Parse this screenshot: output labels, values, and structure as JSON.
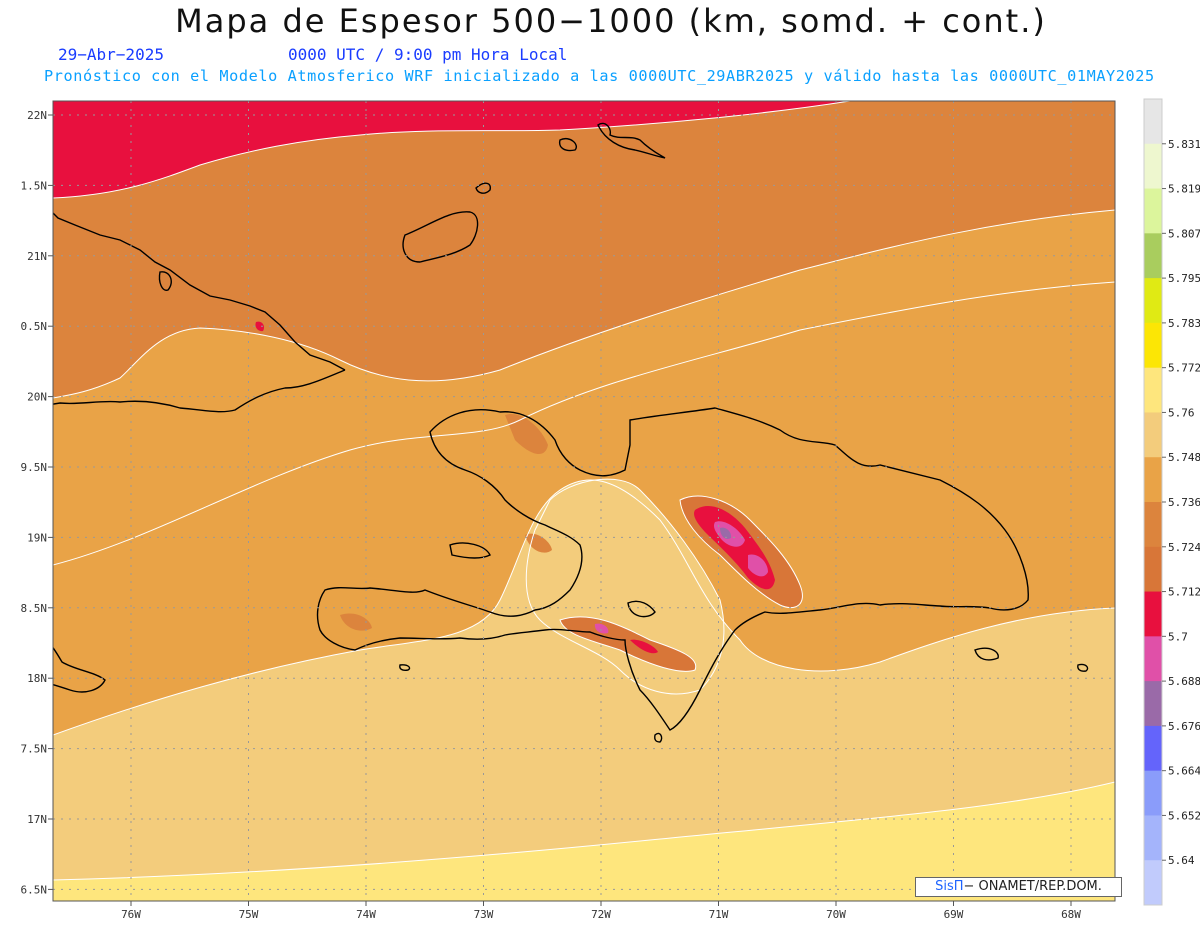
{
  "header": {
    "title": "Mapa de Espesor 500−1000 (km, somd. + cont.)",
    "date": "29−Abr−2025",
    "time": "0000 UTC / 9:00 pm Hora Local",
    "description": "Pronóstico con el Modelo Atmosferico WRF inicializado a las 0000UTC_29ABR2025 y válido hasta las  0000UTC_01MAY2025"
  },
  "colors": {
    "title": "#111111",
    "date": "#1a3cff",
    "description": "#0aa0ff",
    "coast": "#000000",
    "contour": "#ffffff",
    "grid": "#999999"
  },
  "map": {
    "lat_labels": [
      "22N",
      "1.5N",
      "21N",
      "0.5N",
      "20N",
      "9.5N",
      "19N",
      "8.5N",
      "18N",
      "7.5N",
      "17N",
      "6.5N"
    ],
    "lon_labels": [
      "76W",
      "75W",
      "74W",
      "73W",
      "72W",
      "71W",
      "70W",
      "69W",
      "68W"
    ]
  },
  "legend": {
    "labels": [
      "5.831",
      "5.819",
      "5.807",
      "5.795",
      "5.783",
      "5.772",
      "5.76",
      "5.748",
      "5.736",
      "5.724",
      "5.712",
      "5.7",
      "5.688",
      "5.676",
      "5.664",
      "5.652",
      "5.64"
    ],
    "colors": [
      "#e6e6e6",
      "#eef7cf",
      "#dcf59c",
      "#a9cd5e",
      "#e0ea14",
      "#fce605",
      "#fee67d",
      "#f3cc7c",
      "#e9a347",
      "#dc843d",
      "#d87638",
      "#e8103e",
      "#e050a8",
      "#9a6aa8",
      "#6464fb",
      "#8a9cfa",
      "#a4b4fb",
      "#c1cbfc"
    ]
  },
  "credit": {
    "brand": "SisΠ",
    "text": "− ONAMET/REP.DOM."
  }
}
